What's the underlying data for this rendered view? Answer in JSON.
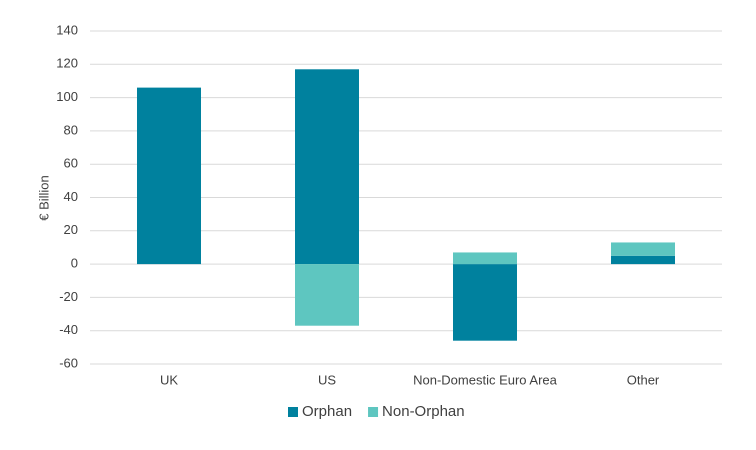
{
  "chart_data": {
    "type": "stacked-bar",
    "y_label": "€ Billion",
    "categories": [
      "UK",
      "US",
      "Non-Domestic Euro Area",
      "Other"
    ],
    "series": [
      {
        "name": "Orphan",
        "color": "#00819e",
        "values": [
          106,
          117,
          -46,
          5
        ]
      },
      {
        "name": "Non-Orphan",
        "color": "#5ec6c0",
        "values": [
          0,
          -37,
          7,
          8
        ]
      }
    ],
    "ylim": [
      -60,
      140
    ],
    "yticks": [
      -60,
      -40,
      -20,
      0,
      20,
      40,
      60,
      80,
      100,
      120,
      140
    ],
    "grid": true,
    "legend": "bottom"
  }
}
